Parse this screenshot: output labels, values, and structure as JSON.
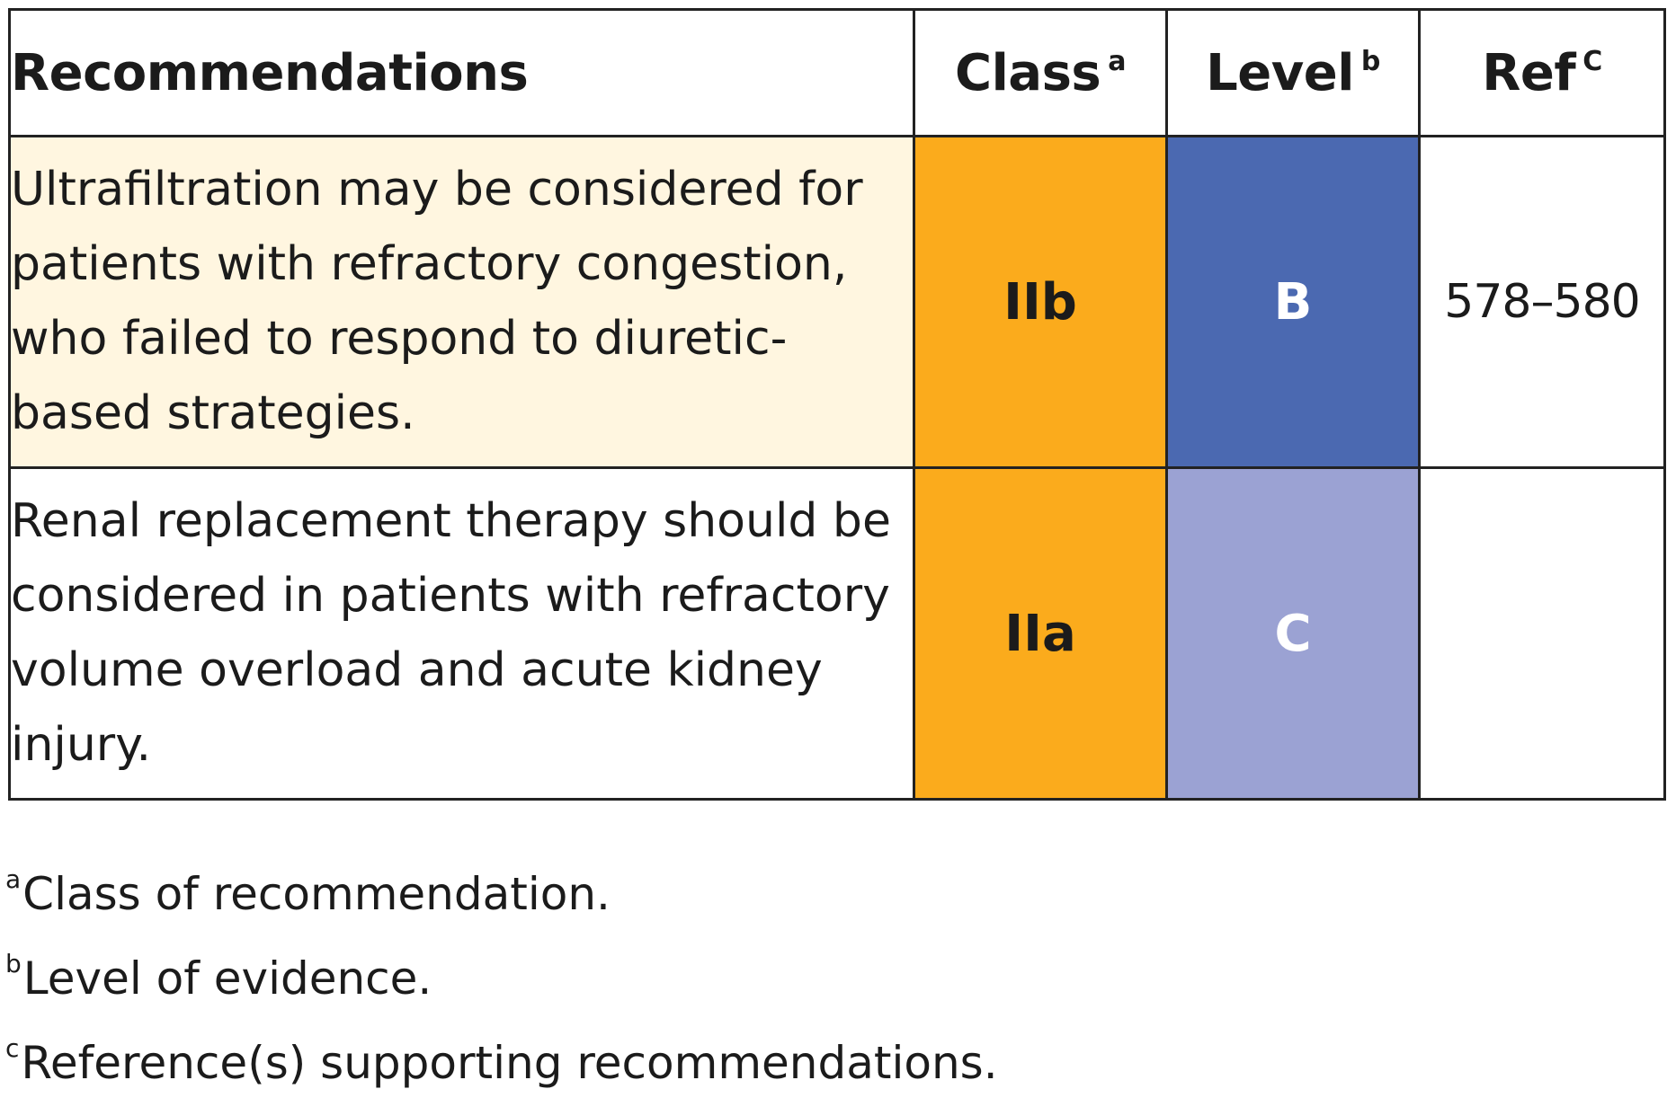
{
  "table": {
    "headers": {
      "recommendations": "Recommendations",
      "class": "Class",
      "class_sup": "a",
      "level": "Level",
      "level_sup": "b",
      "ref": "Ref",
      "ref_sup": "C"
    },
    "rows": [
      {
        "text": "Ultrafiltration may be considered for patients with refractory congestion, who failed to respond to diuretic-based strategies.",
        "class": "IIb",
        "level": "B",
        "ref": "578–580"
      },
      {
        "text": "Renal replacement therapy should be considered in patients with refractory volume overload and acute kidney injury.",
        "class": "IIa",
        "level": "C",
        "ref": ""
      }
    ]
  },
  "footnotes": [
    {
      "marker": "a",
      "text": "Class of recommendation."
    },
    {
      "marker": "b",
      "text": "Level of evidence."
    },
    {
      "marker": "c",
      "text": "Reference(s) supporting recommendations."
    }
  ],
  "colors": {
    "class_orange": "#fbab1c",
    "level_b_blue": "#4b69b1",
    "level_c_lavender": "#9ba2d3",
    "highlight_row": "#fff6e0"
  }
}
